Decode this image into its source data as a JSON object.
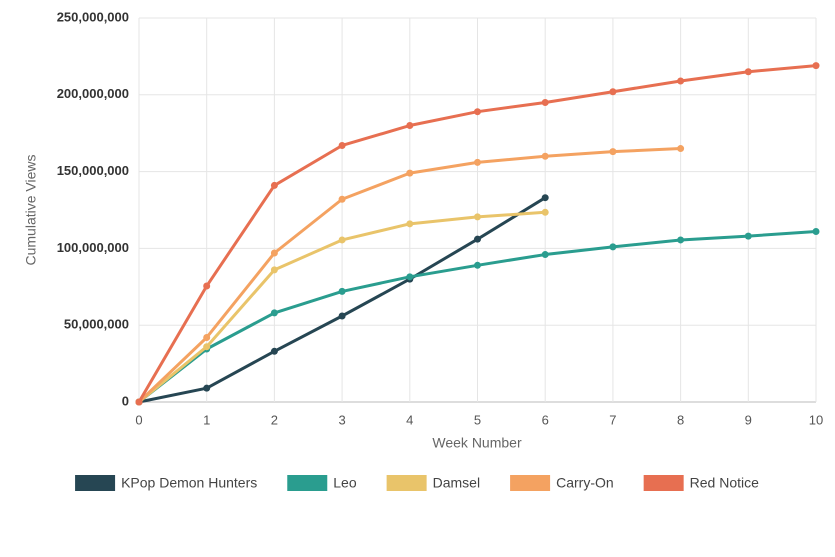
{
  "chart_data": {
    "type": "line",
    "x": [
      0,
      1,
      2,
      3,
      4,
      5,
      6,
      7,
      8,
      9,
      10
    ],
    "xlabel": "Week Number",
    "ylabel": "Cumulative Views",
    "xlim": [
      0,
      10
    ],
    "xticks": [
      0,
      1,
      2,
      3,
      4,
      5,
      6,
      7,
      8,
      9,
      10
    ],
    "ylim": [
      0,
      250000000
    ],
    "yticks": [
      0,
      {
        "value": 50000000,
        "label": "50,000,000"
      },
      {
        "value": 100000000,
        "label": "100,000,000"
      },
      {
        "value": 150000000,
        "label": "150,000,000"
      },
      {
        "value": 200000000,
        "label": "200,000,000"
      },
      {
        "value": 250000000,
        "label": "250,000,000"
      }
    ],
    "grid": true,
    "legend": "bottom",
    "series": [
      {
        "name": "KPop Demon Hunters",
        "color": "#264653",
        "values": [
          0,
          9000000,
          33000000,
          56000000,
          80000000,
          106000000,
          133000000,
          null,
          null,
          null,
          null
        ]
      },
      {
        "name": "Leo",
        "color": "#2a9d8f",
        "values": [
          0,
          34500000,
          58000000,
          72000000,
          81500000,
          89000000,
          96000000,
          101000000,
          105500000,
          108000000,
          111000000
        ]
      },
      {
        "name": "Damsel",
        "color": "#e9c46a",
        "values": [
          0,
          36000000,
          86000000,
          105500000,
          116000000,
          120500000,
          123500000,
          null,
          null,
          null,
          null
        ]
      },
      {
        "name": "Carry-On",
        "color": "#f4a261",
        "values": [
          0,
          42000000,
          97000000,
          132000000,
          149000000,
          156000000,
          160000000,
          163000000,
          165000000,
          null,
          null
        ]
      },
      {
        "name": "Red Notice",
        "color": "#e76f51",
        "values": [
          0,
          75500000,
          141000000,
          167000000,
          180000000,
          189000000,
          195000000,
          202000000,
          209000000,
          215000000,
          219000000
        ]
      }
    ]
  }
}
